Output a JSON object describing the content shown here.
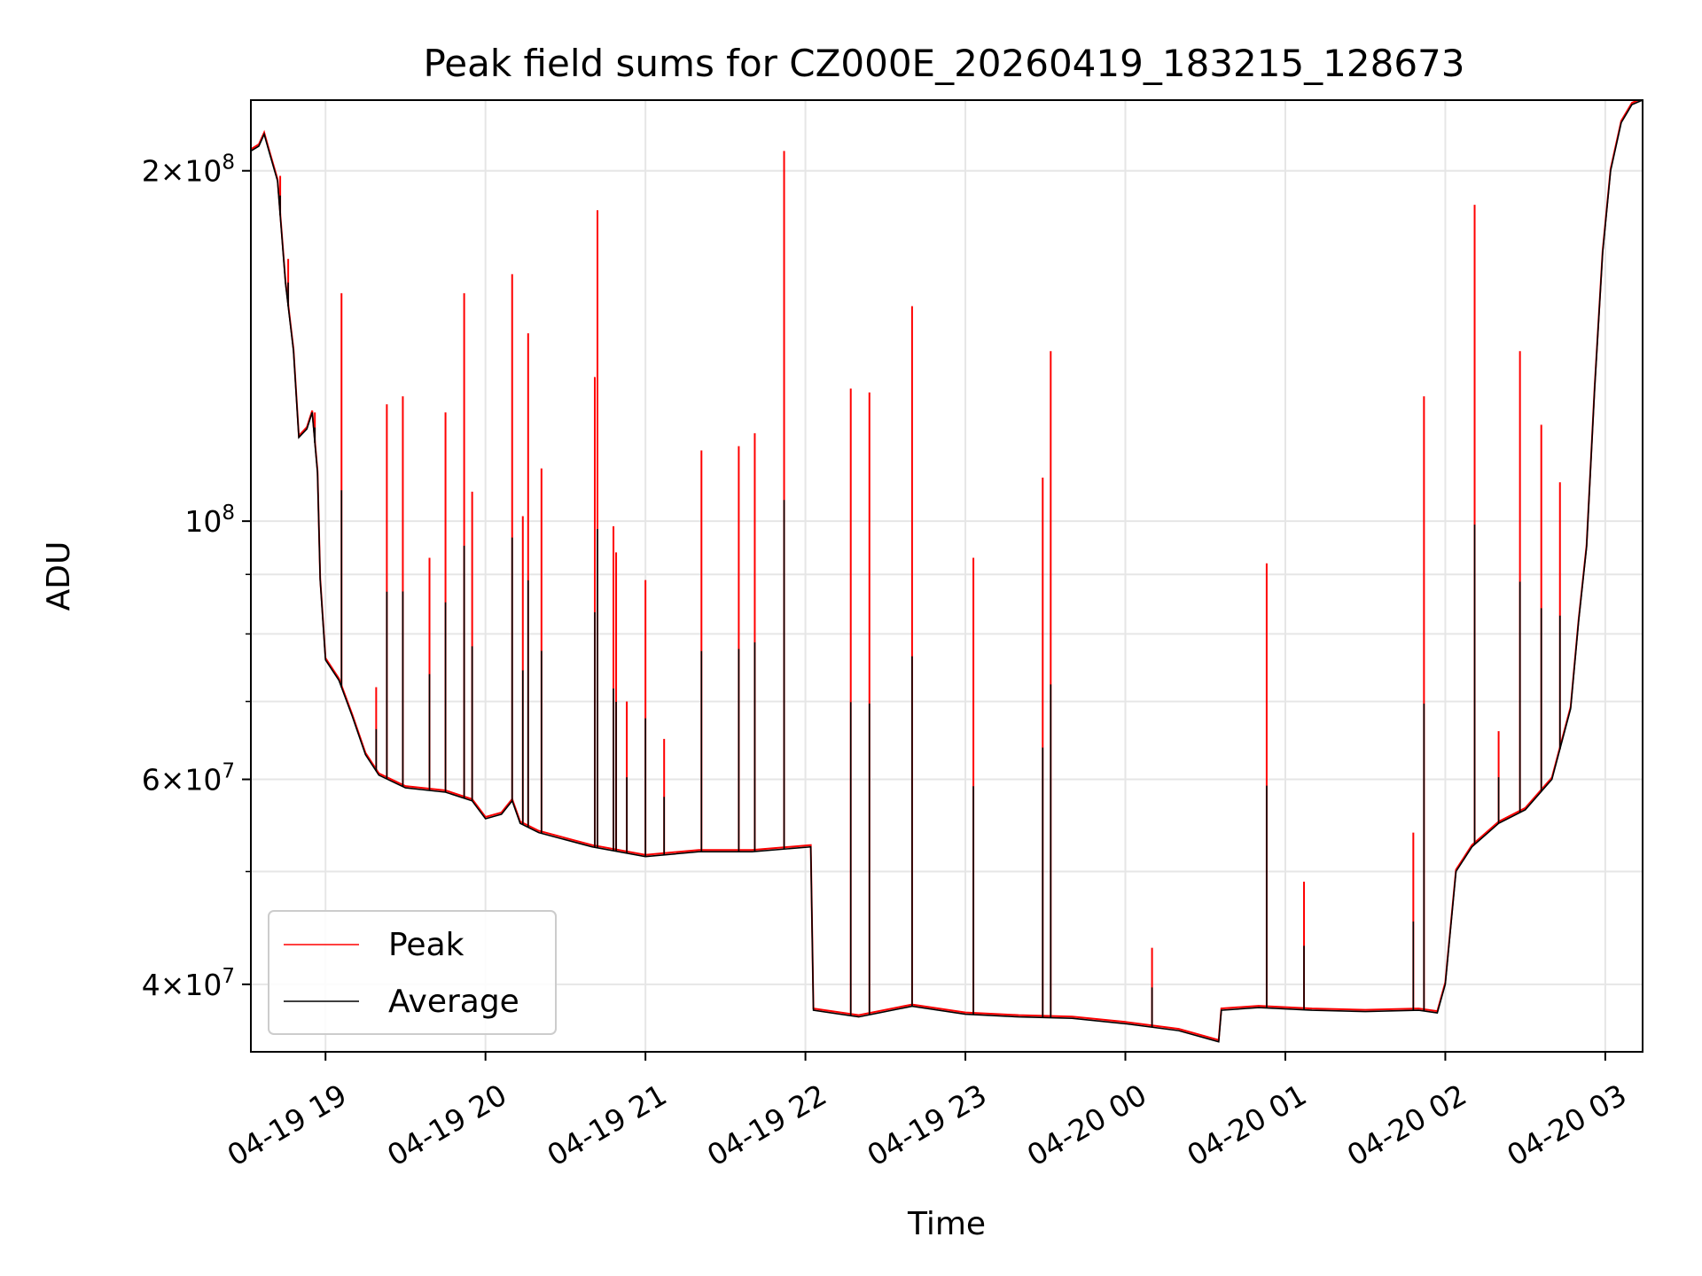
{
  "chart_data": {
    "type": "line",
    "title": "Peak field sums for CZ000E_20260419_183215_128673",
    "xlabel": "Time",
    "ylabel": "ADU",
    "yscale": "log",
    "ylim": [
      35000000,
      230000000
    ],
    "xlim": [
      "2026-04-19 18:32",
      "2026-04-20 03:14"
    ],
    "grid": true,
    "legend_position": "lower-left",
    "x_ticks": [
      {
        "t": "2026-04-19 19:00",
        "label": "04-19 19"
      },
      {
        "t": "2026-04-19 20:00",
        "label": "04-19 20"
      },
      {
        "t": "2026-04-19 21:00",
        "label": "04-19 21"
      },
      {
        "t": "2026-04-19 22:00",
        "label": "04-19 22"
      },
      {
        "t": "2026-04-19 23:00",
        "label": "04-19 23"
      },
      {
        "t": "2026-04-20 00:00",
        "label": "04-20 00"
      },
      {
        "t": "2026-04-20 01:00",
        "label": "04-20 01"
      },
      {
        "t": "2026-04-20 02:00",
        "label": "04-20 02"
      },
      {
        "t": "2026-04-20 03:00",
        "label": "04-20 03"
      }
    ],
    "y_ticks": [
      {
        "v": 40000000,
        "base": "4×10",
        "exp": "7"
      },
      {
        "v": 60000000,
        "base": "6×10",
        "exp": "7"
      },
      {
        "v": 100000000,
        "base": "10",
        "exp": "8"
      },
      {
        "v": 200000000,
        "base": "2×10",
        "exp": "8"
      }
    ],
    "y_minor_ticks": [
      50000000,
      70000000,
      80000000,
      90000000
    ],
    "series": [
      {
        "name": "Peak",
        "color": "#ff0000",
        "spikes": [
          [
            "2026-04-19 18:43",
            198000000
          ],
          [
            "2026-04-19 18:46",
            168000000
          ],
          [
            "2026-04-19 18:56",
            124000000
          ],
          [
            "2026-04-19 19:06",
            157000000
          ],
          [
            "2026-04-19 19:19",
            72000000
          ],
          [
            "2026-04-19 19:23",
            126000000
          ],
          [
            "2026-04-19 19:29",
            128000000
          ],
          [
            "2026-04-19 19:39",
            93000000
          ],
          [
            "2026-04-19 19:45",
            124000000
          ],
          [
            "2026-04-19 19:52",
            157000000
          ],
          [
            "2026-04-19 19:55",
            106000000
          ],
          [
            "2026-04-19 20:10",
            163000000
          ],
          [
            "2026-04-19 20:14",
            101000000
          ],
          [
            "2026-04-19 20:16",
            145000000
          ],
          [
            "2026-04-19 20:21",
            111000000
          ],
          [
            "2026-04-19 20:41",
            133000000
          ],
          [
            "2026-04-19 20:42",
            185000000
          ],
          [
            "2026-04-19 20:48",
            99000000
          ],
          [
            "2026-04-19 20:49",
            94000000
          ],
          [
            "2026-04-19 20:53",
            70000000
          ],
          [
            "2026-04-19 21:00",
            89000000
          ],
          [
            "2026-04-19 21:07",
            65000000
          ],
          [
            "2026-04-19 21:21",
            115000000
          ],
          [
            "2026-04-19 21:35",
            116000000
          ],
          [
            "2026-04-19 21:41",
            119000000
          ],
          [
            "2026-04-19 21:52",
            208000000
          ],
          [
            "2026-04-19 22:17",
            130000000
          ],
          [
            "2026-04-19 22:24",
            129000000
          ],
          [
            "2026-04-19 22:40",
            153000000
          ],
          [
            "2026-04-19 23:03",
            93000000
          ],
          [
            "2026-04-19 23:29",
            109000000
          ],
          [
            "2026-04-19 23:32",
            140000000
          ],
          [
            "2026-04-20 00:10",
            43000000
          ],
          [
            "2026-04-20 00:53",
            92000000
          ],
          [
            "2026-04-20 01:07",
            49000000
          ],
          [
            "2026-04-20 01:48",
            54000000
          ],
          [
            "2026-04-20 01:52",
            128000000
          ],
          [
            "2026-04-20 02:11",
            187000000
          ],
          [
            "2026-04-20 02:20",
            66000000
          ],
          [
            "2026-04-20 02:28",
            140000000
          ],
          [
            "2026-04-20 02:36",
            121000000
          ],
          [
            "2026-04-20 02:43",
            108000000
          ]
        ]
      },
      {
        "name": "Average",
        "color": "#000000",
        "points": [
          [
            "2026-04-19 18:32",
            208000000
          ],
          [
            "2026-04-19 18:35",
            210000000
          ],
          [
            "2026-04-19 18:37",
            215000000
          ],
          [
            "2026-04-19 18:39",
            207000000
          ],
          [
            "2026-04-19 18:42",
            196000000
          ],
          [
            "2026-04-19 18:45",
            160000000
          ],
          [
            "2026-04-19 18:48",
            140000000
          ],
          [
            "2026-04-19 18:50",
            118000000
          ],
          [
            "2026-04-19 18:53",
            120000000
          ],
          [
            "2026-04-19 18:55",
            124000000
          ],
          [
            "2026-04-19 18:57",
            110000000
          ],
          [
            "2026-04-19 18:58",
            89000000
          ],
          [
            "2026-04-19 19:00",
            76000000
          ],
          [
            "2026-04-19 19:05",
            73000000
          ],
          [
            "2026-04-19 19:10",
            68000000
          ],
          [
            "2026-04-19 19:15",
            63000000
          ],
          [
            "2026-04-19 19:20",
            60500000
          ],
          [
            "2026-04-19 19:30",
            59000000
          ],
          [
            "2026-04-19 19:45",
            58500000
          ],
          [
            "2026-04-19 19:55",
            57500000
          ],
          [
            "2026-04-19 20:00",
            55500000
          ],
          [
            "2026-04-19 20:06",
            56000000
          ],
          [
            "2026-04-19 20:10",
            57500000
          ],
          [
            "2026-04-19 20:13",
            55000000
          ],
          [
            "2026-04-19 20:20",
            54000000
          ],
          [
            "2026-04-19 20:40",
            52500000
          ],
          [
            "2026-04-19 21:00",
            51500000
          ],
          [
            "2026-04-19 21:20",
            52000000
          ],
          [
            "2026-04-19 21:40",
            52000000
          ],
          [
            "2026-04-19 22:02",
            52500000
          ],
          [
            "2026-04-19 22:03",
            38000000
          ],
          [
            "2026-04-19 22:20",
            37500000
          ],
          [
            "2026-04-19 22:40",
            38300000
          ],
          [
            "2026-04-19 23:00",
            37700000
          ],
          [
            "2026-04-19 23:20",
            37500000
          ],
          [
            "2026-04-19 23:40",
            37400000
          ],
          [
            "2026-04-20 00:00",
            37000000
          ],
          [
            "2026-04-20 00:20",
            36500000
          ],
          [
            "2026-04-20 00:35",
            35700000
          ],
          [
            "2026-04-20 00:36",
            38000000
          ],
          [
            "2026-04-20 00:50",
            38200000
          ],
          [
            "2026-04-20 01:10",
            38000000
          ],
          [
            "2026-04-20 01:30",
            37900000
          ],
          [
            "2026-04-20 01:50",
            38000000
          ],
          [
            "2026-04-20 01:57",
            37800000
          ],
          [
            "2026-04-20 02:00",
            40000000
          ],
          [
            "2026-04-20 02:04",
            50000000
          ],
          [
            "2026-04-20 02:10",
            52500000
          ],
          [
            "2026-04-20 02:20",
            55000000
          ],
          [
            "2026-04-20 02:30",
            56500000
          ],
          [
            "2026-04-20 02:40",
            60000000
          ],
          [
            "2026-04-20 02:47",
            69000000
          ],
          [
            "2026-04-20 02:50",
            82000000
          ],
          [
            "2026-04-20 02:53",
            95000000
          ],
          [
            "2026-04-20 02:56",
            130000000
          ],
          [
            "2026-04-20 02:59",
            170000000
          ],
          [
            "2026-04-20 03:02",
            200000000
          ],
          [
            "2026-04-20 03:06",
            220000000
          ],
          [
            "2026-04-20 03:10",
            228000000
          ],
          [
            "2026-04-20 03:14",
            230000000
          ]
        ]
      }
    ],
    "legend": [
      {
        "label": "Peak",
        "color": "#ff0000"
      },
      {
        "label": "Average",
        "color": "#000000"
      }
    ]
  }
}
